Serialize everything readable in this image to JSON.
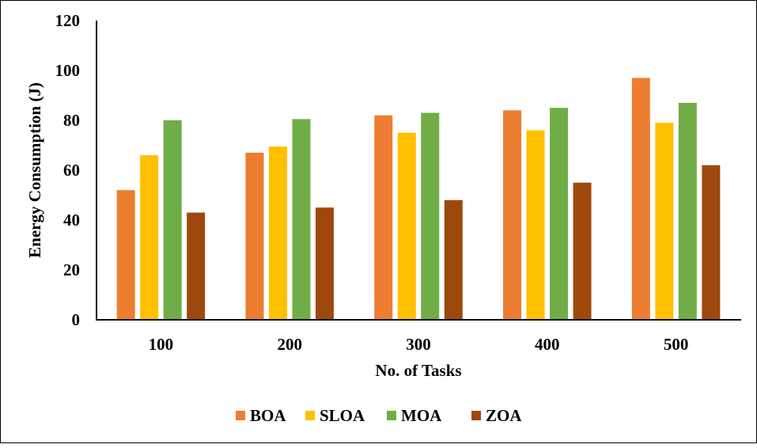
{
  "chart_data": {
    "type": "bar",
    "title": "",
    "xlabel": "No. of Tasks",
    "ylabel": "Energy Consumption (J)",
    "categories": [
      "100",
      "200",
      "300",
      "400",
      "500"
    ],
    "ylim": [
      0,
      120
    ],
    "yticks": [
      "0",
      "20",
      "40",
      "60",
      "80",
      "100",
      "120"
    ],
    "grid": false,
    "legend_position": "bottom",
    "series": [
      {
        "name": "BOA",
        "color": "#ED7D31",
        "values": [
          52,
          67,
          82,
          84,
          97
        ]
      },
      {
        "name": "SLOA",
        "color": "#FFC000",
        "values": [
          66,
          69.5,
          75,
          76,
          79
        ]
      },
      {
        "name": "MOA",
        "color": "#70AD47",
        "values": [
          80,
          80.5,
          83,
          85,
          87
        ]
      },
      {
        "name": "ZOA",
        "color": "#9E480E",
        "values": [
          43,
          45,
          48,
          55,
          62
        ]
      }
    ]
  }
}
